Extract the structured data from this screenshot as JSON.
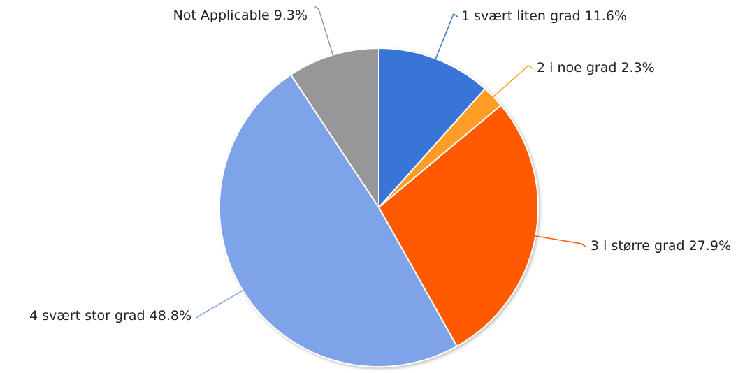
{
  "chart_data": {
    "type": "pie",
    "slices": [
      {
        "label": "1 svært liten grad",
        "value": 11.6,
        "percent_label": "11.6%",
        "color": "#3875d7"
      },
      {
        "label": "2 i noe grad",
        "value": 2.3,
        "percent_label": "2.3%",
        "color": "#ff9d26"
      },
      {
        "label": "3 i større grad",
        "value": 27.9,
        "percent_label": "27.9%",
        "color": "#ff5a00"
      },
      {
        "label": "4 svært stor grad",
        "value": 48.8,
        "percent_label": "48.8%",
        "color": "#7ea3e8"
      },
      {
        "label": "Not Applicable",
        "value": 9.3,
        "percent_label": "9.3%",
        "color": "#97979a"
      }
    ],
    "start_angle": "12 o'clock",
    "direction": "clockwise",
    "legend": "none",
    "label_style": "outside with leader lines"
  }
}
